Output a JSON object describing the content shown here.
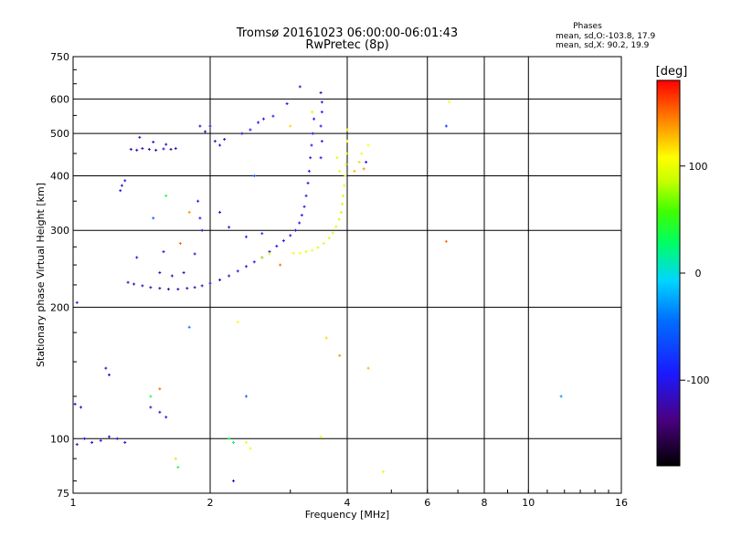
{
  "chart_data": {
    "type": "scatter",
    "title": "Tromsø 20161023 06:00:00-06:01:43",
    "subtitle": "RwPretec (8p)",
    "xlabel": "Frequency [MHz]",
    "ylabel": "Stationary phase Virtual Height [km]",
    "x_scale": "log",
    "y_scale": "log",
    "xlim": [
      1,
      16
    ],
    "ylim": [
      75,
      750
    ],
    "x_ticks": [
      1,
      2,
      4,
      6,
      8,
      10,
      16
    ],
    "x_tick_labels": [
      "1",
      "2",
      "4",
      "6",
      "8",
      "10",
      "16"
    ],
    "y_ticks": [
      75,
      100,
      200,
      300,
      400,
      500,
      600,
      750
    ],
    "y_tick_labels": [
      "75",
      "100",
      "200",
      "300",
      "400",
      "500",
      "600",
      "750"
    ],
    "grid": true,
    "stats": {
      "header": "Phases",
      "o_line": "mean, sd,O:-103.8, 17.9",
      "x_line": "mean, sd,X:  90.2, 19.9"
    },
    "colorbar": {
      "label": "[deg]",
      "range": [
        -180,
        180
      ],
      "ticks": [
        100,
        0,
        -100
      ],
      "tick_labels": [
        "100",
        "0",
        "-100"
      ]
    },
    "series": [
      {
        "points": [
          {
            "x": 1.02,
            "y": 205,
            "p": -110
          },
          {
            "x": 1.01,
            "y": 120,
            "p": -110
          },
          {
            "x": 1.04,
            "y": 118,
            "p": -110
          },
          {
            "x": 1.02,
            "y": 97,
            "p": -110
          },
          {
            "x": 1.06,
            "y": 100,
            "p": -100
          },
          {
            "x": 1.1,
            "y": 98,
            "p": -110
          },
          {
            "x": 1.15,
            "y": 99,
            "p": -100
          },
          {
            "x": 1.2,
            "y": 101,
            "p": -110
          },
          {
            "x": 1.25,
            "y": 100,
            "p": -100
          },
          {
            "x": 1.3,
            "y": 98,
            "p": -100
          },
          {
            "x": 1.18,
            "y": 145,
            "p": -110
          },
          {
            "x": 1.2,
            "y": 140,
            "p": -110
          },
          {
            "x": 1.28,
            "y": 380,
            "p": -100
          },
          {
            "x": 1.27,
            "y": 370,
            "p": -110
          },
          {
            "x": 1.3,
            "y": 390,
            "p": -100
          },
          {
            "x": 1.34,
            "y": 460,
            "p": -120
          },
          {
            "x": 1.38,
            "y": 458,
            "p": -120
          },
          {
            "x": 1.42,
            "y": 462,
            "p": -120
          },
          {
            "x": 1.47,
            "y": 460,
            "p": -120
          },
          {
            "x": 1.52,
            "y": 458,
            "p": -120
          },
          {
            "x": 1.58,
            "y": 461,
            "p": -120
          },
          {
            "x": 1.64,
            "y": 460,
            "p": -120
          },
          {
            "x": 1.68,
            "y": 462,
            "p": -120
          },
          {
            "x": 1.4,
            "y": 490,
            "p": -115
          },
          {
            "x": 1.5,
            "y": 478,
            "p": -115
          },
          {
            "x": 1.6,
            "y": 472,
            "p": -115
          },
          {
            "x": 1.32,
            "y": 228,
            "p": -120
          },
          {
            "x": 1.36,
            "y": 226,
            "p": -120
          },
          {
            "x": 1.42,
            "y": 224,
            "p": -120
          },
          {
            "x": 1.48,
            "y": 222,
            "p": -125
          },
          {
            "x": 1.55,
            "y": 221,
            "p": -125
          },
          {
            "x": 1.62,
            "y": 220,
            "p": -125
          },
          {
            "x": 1.7,
            "y": 220,
            "p": -125
          },
          {
            "x": 1.78,
            "y": 221,
            "p": -120
          },
          {
            "x": 1.85,
            "y": 222,
            "p": -120
          },
          {
            "x": 1.92,
            "y": 224,
            "p": -120
          },
          {
            "x": 2.0,
            "y": 227,
            "p": -115
          },
          {
            "x": 2.1,
            "y": 231,
            "p": -115
          },
          {
            "x": 2.2,
            "y": 236,
            "p": -110
          },
          {
            "x": 2.3,
            "y": 242,
            "p": -110
          },
          {
            "x": 2.4,
            "y": 248,
            "p": -105
          },
          {
            "x": 2.5,
            "y": 254,
            "p": -100
          },
          {
            "x": 2.6,
            "y": 260,
            "p": -100
          },
          {
            "x": 2.7,
            "y": 268,
            "p": -100
          },
          {
            "x": 2.8,
            "y": 276,
            "p": -100
          },
          {
            "x": 2.9,
            "y": 284,
            "p": -100
          },
          {
            "x": 3.0,
            "y": 292,
            "p": -100
          },
          {
            "x": 3.08,
            "y": 300,
            "p": -100
          },
          {
            "x": 3.14,
            "y": 312,
            "p": -100
          },
          {
            "x": 3.18,
            "y": 325,
            "p": -100
          },
          {
            "x": 3.22,
            "y": 340,
            "p": -100
          },
          {
            "x": 3.25,
            "y": 360,
            "p": -100
          },
          {
            "x": 3.28,
            "y": 385,
            "p": -100
          },
          {
            "x": 3.3,
            "y": 410,
            "p": -100
          },
          {
            "x": 3.32,
            "y": 440,
            "p": -100
          },
          {
            "x": 3.34,
            "y": 470,
            "p": -100
          },
          {
            "x": 3.36,
            "y": 500,
            "p": -100
          },
          {
            "x": 3.38,
            "y": 540,
            "p": -100
          },
          {
            "x": 3.15,
            "y": 640,
            "p": -110
          },
          {
            "x": 3.5,
            "y": 620,
            "p": -110
          },
          {
            "x": 3.52,
            "y": 590,
            "p": -105
          },
          {
            "x": 3.52,
            "y": 560,
            "p": -100
          },
          {
            "x": 3.5,
            "y": 520,
            "p": -100
          },
          {
            "x": 3.52,
            "y": 480,
            "p": -100
          },
          {
            "x": 3.5,
            "y": 440,
            "p": -100
          },
          {
            "x": 1.55,
            "y": 240,
            "p": -115
          },
          {
            "x": 1.65,
            "y": 236,
            "p": -115
          },
          {
            "x": 1.75,
            "y": 240,
            "p": -115
          },
          {
            "x": 1.38,
            "y": 260,
            "p": -110
          },
          {
            "x": 1.58,
            "y": 268,
            "p": -110
          },
          {
            "x": 1.85,
            "y": 265,
            "p": -110
          },
          {
            "x": 1.9,
            "y": 520,
            "p": -115
          },
          {
            "x": 1.95,
            "y": 505,
            "p": -115
          },
          {
            "x": 2.05,
            "y": 480,
            "p": -115
          },
          {
            "x": 2.1,
            "y": 470,
            "p": -115
          },
          {
            "x": 2.15,
            "y": 485,
            "p": -115
          },
          {
            "x": 2.0,
            "y": 520,
            "p": -115
          },
          {
            "x": 2.35,
            "y": 500,
            "p": -110
          },
          {
            "x": 2.45,
            "y": 510,
            "p": -105
          },
          {
            "x": 2.55,
            "y": 530,
            "p": -100
          },
          {
            "x": 2.62,
            "y": 540,
            "p": -100
          },
          {
            "x": 2.75,
            "y": 548,
            "p": -90
          },
          {
            "x": 2.95,
            "y": 585,
            "p": -100
          },
          {
            "x": 1.88,
            "y": 350,
            "p": -105
          },
          {
            "x": 1.9,
            "y": 320,
            "p": -100
          },
          {
            "x": 1.92,
            "y": 300,
            "p": -100
          },
          {
            "x": 2.1,
            "y": 330,
            "p": -110
          },
          {
            "x": 2.2,
            "y": 305,
            "p": -110
          },
          {
            "x": 2.4,
            "y": 290,
            "p": -90
          },
          {
            "x": 2.6,
            "y": 295,
            "p": -80
          },
          {
            "x": 1.55,
            "y": 115,
            "p": -110
          },
          {
            "x": 1.6,
            "y": 112,
            "p": -110
          },
          {
            "x": 1.48,
            "y": 118,
            "p": -110
          },
          {
            "x": 2.25,
            "y": 80,
            "p": -110
          },
          {
            "x": 4.4,
            "y": 430,
            "p": -100
          },
          {
            "x": 6.6,
            "y": 520,
            "p": -80
          },
          {
            "x": 2.4,
            "y": 125,
            "p": -50
          },
          {
            "x": 11.8,
            "y": 125,
            "p": -30
          },
          {
            "x": 1.8,
            "y": 180,
            "p": -40
          },
          {
            "x": 2.5,
            "y": 400,
            "p": -60
          },
          {
            "x": 1.5,
            "y": 320,
            "p": -50
          }
        ]
      },
      {
        "points": [
          {
            "x": 3.05,
            "y": 266,
            "p": 110
          },
          {
            "x": 3.15,
            "y": 266,
            "p": 105
          },
          {
            "x": 3.25,
            "y": 268,
            "p": 100
          },
          {
            "x": 3.35,
            "y": 270,
            "p": 100
          },
          {
            "x": 3.45,
            "y": 274,
            "p": 95
          },
          {
            "x": 3.55,
            "y": 280,
            "p": 95
          },
          {
            "x": 3.65,
            "y": 288,
            "p": 90
          },
          {
            "x": 3.72,
            "y": 296,
            "p": 90
          },
          {
            "x": 3.78,
            "y": 306,
            "p": 90
          },
          {
            "x": 3.84,
            "y": 318,
            "p": 90
          },
          {
            "x": 3.88,
            "y": 330,
            "p": 90
          },
          {
            "x": 3.9,
            "y": 345,
            "p": 90
          },
          {
            "x": 3.92,
            "y": 360,
            "p": 90
          },
          {
            "x": 3.94,
            "y": 380,
            "p": 95
          },
          {
            "x": 3.96,
            "y": 400,
            "p": 95
          },
          {
            "x": 3.98,
            "y": 425,
            "p": 100
          },
          {
            "x": 3.99,
            "y": 450,
            "p": 105
          },
          {
            "x": 4.0,
            "y": 480,
            "p": 110
          },
          {
            "x": 4.0,
            "y": 510,
            "p": 120
          },
          {
            "x": 3.8,
            "y": 440,
            "p": 95
          },
          {
            "x": 3.85,
            "y": 410,
            "p": 95
          },
          {
            "x": 4.25,
            "y": 430,
            "p": 120
          },
          {
            "x": 4.3,
            "y": 450,
            "p": 110
          },
          {
            "x": 4.45,
            "y": 470,
            "p": 105
          },
          {
            "x": 4.35,
            "y": 415,
            "p": 140
          },
          {
            "x": 2.6,
            "y": 260,
            "p": 80
          },
          {
            "x": 2.7,
            "y": 265,
            "p": 95
          },
          {
            "x": 2.2,
            "y": 100,
            "p": 40
          },
          {
            "x": 2.25,
            "y": 98,
            "p": 30
          },
          {
            "x": 2.4,
            "y": 98,
            "p": 100
          },
          {
            "x": 2.45,
            "y": 95,
            "p": 110
          },
          {
            "x": 1.68,
            "y": 90,
            "p": 120
          },
          {
            "x": 1.7,
            "y": 86,
            "p": 40
          },
          {
            "x": 3.85,
            "y": 155,
            "p": 140
          },
          {
            "x": 3.6,
            "y": 170,
            "p": 120
          },
          {
            "x": 4.45,
            "y": 145,
            "p": 130
          },
          {
            "x": 4.8,
            "y": 84,
            "p": 100
          },
          {
            "x": 6.7,
            "y": 590,
            "p": 110
          },
          {
            "x": 6.6,
            "y": 283,
            "p": 150
          },
          {
            "x": 1.55,
            "y": 130,
            "p": 150
          },
          {
            "x": 1.48,
            "y": 125,
            "p": 40
          },
          {
            "x": 1.6,
            "y": 360,
            "p": 40
          },
          {
            "x": 1.8,
            "y": 330,
            "p": 140
          },
          {
            "x": 2.85,
            "y": 250,
            "p": 150
          },
          {
            "x": 3.0,
            "y": 520,
            "p": 120
          },
          {
            "x": 2.3,
            "y": 185,
            "p": 110
          },
          {
            "x": 3.5,
            "y": 101,
            "p": 110
          },
          {
            "x": 1.72,
            "y": 280,
            "p": 150
          },
          {
            "x": 3.35,
            "y": 560,
            "p": 115
          },
          {
            "x": 4.15,
            "y": 410,
            "p": 130
          }
        ]
      }
    ]
  }
}
